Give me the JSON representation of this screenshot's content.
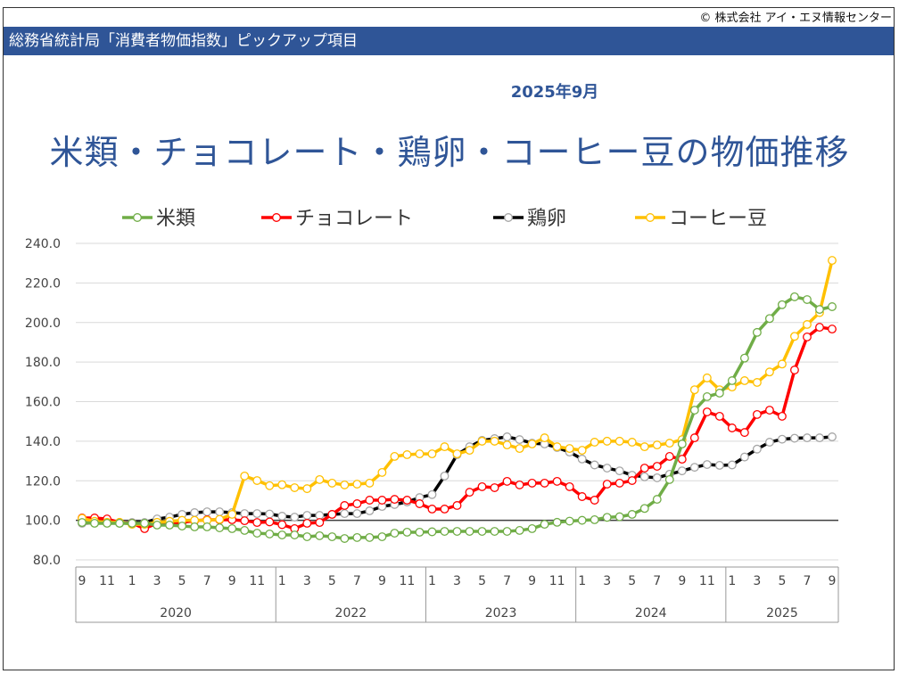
{
  "header": {
    "copyright": "© 株式会社 アイ・エヌ情報センター",
    "bar_title": "総務省統計局「消費者物価指数」ピックアップ項目",
    "date": "2025年9月",
    "title": "米類・チョコレート・鶏卵・コーヒー豆の物価推移"
  },
  "chart_data": {
    "type": "line",
    "title": "米類・チョコレート・鶏卵・コーヒー豆の物価推移",
    "ylim": [
      80,
      240
    ],
    "yticks": [
      "80.0",
      "100.0",
      "120.0",
      "140.0",
      "160.0",
      "180.0",
      "200.0",
      "220.0",
      "240.0"
    ],
    "grid": true,
    "legend_position": "top",
    "reference_line": 100,
    "x_month_labels": [
      "9",
      "11",
      "1",
      "3",
      "5",
      "7",
      "9",
      "11",
      "1",
      "3",
      "5",
      "7",
      "9",
      "11",
      "1",
      "3",
      "5",
      "7",
      "9",
      "11",
      "1",
      "3",
      "5",
      "7",
      "9",
      "11",
      "1",
      "3",
      "5",
      "7",
      "9"
    ],
    "year_groups": [
      {
        "label": "2020",
        "months": 16
      },
      {
        "label": "2022",
        "months": 12
      },
      {
        "label": "2023",
        "months": 12
      },
      {
        "label": "2024",
        "months": 12
      },
      {
        "label": "2025",
        "months": 9
      }
    ],
    "series": [
      {
        "name": "米類",
        "color": "#70AD47",
        "values": [
          98.9,
          98.5,
          98.5,
          98.5,
          98.5,
          98.5,
          97.6,
          97.6,
          97.1,
          96.7,
          96.7,
          96.2,
          95.8,
          94.9,
          93.5,
          93.1,
          92.6,
          92.6,
          91.7,
          92.2,
          91.7,
          90.8,
          91.3,
          91.3,
          91.7,
          93.5,
          94,
          94,
          94.2,
          94.4,
          94.4,
          94.4,
          94.4,
          94.4,
          94.4,
          94.9,
          95.8,
          98,
          99,
          99.6,
          100,
          100.3,
          101.5,
          101.8,
          103,
          106,
          110.6,
          120.6,
          138.6,
          155.7,
          162.5,
          164.3,
          170.6,
          182,
          195,
          202,
          209,
          213,
          211.6,
          206.6,
          208
        ]
      },
      {
        "name": "チョコレート",
        "color": "#FF0000",
        "values": [
          101.2,
          101.2,
          100.7,
          98.9,
          98.5,
          95.8,
          98.5,
          98,
          98.9,
          99.8,
          100.3,
          100.3,
          100.3,
          99.8,
          98.9,
          99.2,
          97.8,
          95.8,
          98.5,
          98.9,
          103,
          107.5,
          108.4,
          110.2,
          110.2,
          110.6,
          110.2,
          108.4,
          105.7,
          105.7,
          107.5,
          114.2,
          117,
          116.5,
          119.7,
          117.9,
          118.8,
          118.8,
          119.7,
          117,
          112,
          110.2,
          118.3,
          118.8,
          120.1,
          126.4,
          127.3,
          132.3,
          130.9,
          141.7,
          154.8,
          152.6,
          146.7,
          144.4,
          153.5,
          155.7,
          152.6,
          176,
          192.7,
          197.6,
          196.7
        ]
      },
      {
        "name": "鶏卵",
        "color": "#000000",
        "values": [
          98.5,
          98.9,
          98.9,
          98.5,
          98.9,
          98.9,
          100.7,
          101.6,
          103,
          103.9,
          104.3,
          104.3,
          103.9,
          103.4,
          103.4,
          103.2,
          102.1,
          101.6,
          102.5,
          102.5,
          103,
          103.4,
          103.4,
          104.8,
          107,
          108,
          109.3,
          111.5,
          113,
          122.4,
          133.2,
          137.2,
          140.4,
          141.3,
          142.2,
          140.8,
          139,
          138.6,
          136.8,
          134.5,
          131,
          128,
          126.4,
          125,
          122.8,
          122,
          121.5,
          123.3,
          125,
          126.8,
          128.2,
          127.8,
          128,
          132,
          136,
          139.5,
          141,
          141.5,
          141.7,
          141.7,
          142.2
        ]
      },
      {
        "name": "コーヒー豆",
        "color": "#FFC000",
        "values": [
          101,
          99.5,
          99,
          99,
          98,
          98,
          99,
          99.5,
          100,
          100,
          100,
          100.5,
          103,
          122.4,
          120.1,
          117.5,
          118,
          116.5,
          116,
          120.6,
          118.8,
          117.9,
          118.3,
          118.8,
          124.2,
          132.3,
          133.2,
          133.6,
          133.6,
          137.2,
          133.6,
          135.4,
          140,
          140,
          138.1,
          136.3,
          138.6,
          141.7,
          137.2,
          136.3,
          135.4,
          139.5,
          140,
          140,
          139.5,
          137.2,
          138.1,
          139,
          140.8,
          166,
          172,
          166,
          167.4,
          170.6,
          169.7,
          175,
          179,
          193,
          199,
          205,
          231.4
        ]
      }
    ]
  }
}
